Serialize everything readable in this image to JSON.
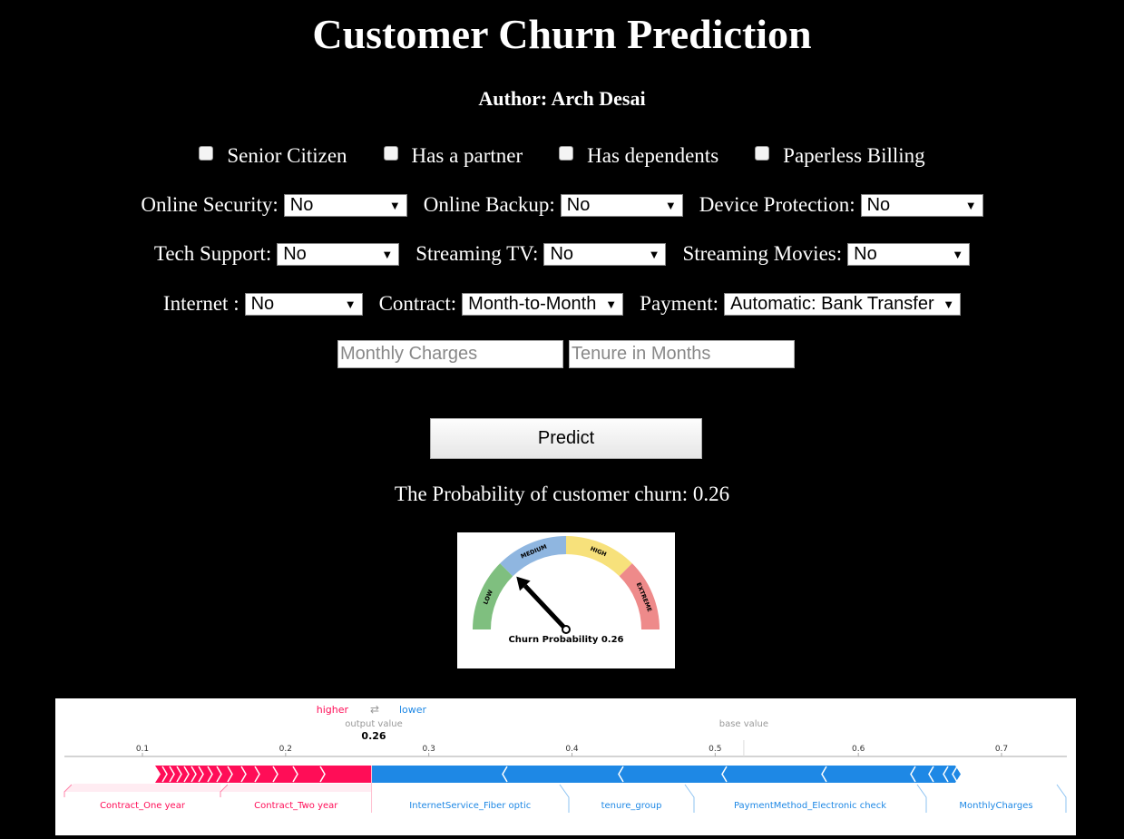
{
  "title": "Customer Churn Prediction",
  "author": "Author: Arch Desai",
  "checkboxes": [
    {
      "label": "Senior Citizen",
      "checked": false
    },
    {
      "label": "Has a partner",
      "checked": false
    },
    {
      "label": "Has dependents",
      "checked": false
    },
    {
      "label": "Paperless Billing",
      "checked": false
    }
  ],
  "selects": {
    "online_security": {
      "label": "Online Security:",
      "value": "No"
    },
    "online_backup": {
      "label": "Online Backup:",
      "value": "No"
    },
    "device_protection": {
      "label": "Device Protection:",
      "value": "No"
    },
    "tech_support": {
      "label": "Tech Support:",
      "value": "No"
    },
    "streaming_tv": {
      "label": "Streaming TV:",
      "value": "No"
    },
    "streaming_movies": {
      "label": "Streaming Movies:",
      "value": "No"
    },
    "internet": {
      "label": "Internet :",
      "value": "No"
    },
    "contract": {
      "label": "Contract:",
      "value": "Month-to-Month"
    },
    "payment": {
      "label": "Payment:",
      "value": "Automatic: Bank Transfer"
    }
  },
  "inputs": {
    "monthly_charges": {
      "placeholder": "Monthly Charges",
      "value": ""
    },
    "tenure": {
      "placeholder": "Tenure in Months",
      "value": ""
    }
  },
  "predict_label": "Predict",
  "result_text": "The Probability of customer churn: 0.26",
  "gauge": {
    "caption": "Churn Probability 0.26",
    "value": 0.26,
    "segments": [
      "LOW",
      "MEDIUM",
      "HIGH",
      "EXTREME"
    ],
    "colors": [
      "#7fbf7f",
      "#8fb6e0",
      "#f7e17b",
      "#ee8a8a"
    ]
  },
  "force_plot": {
    "higher_label": "higher",
    "lower_label": "lower",
    "swap_glyph": "⇄",
    "output_value_label": "output value",
    "output_value": "0.26",
    "base_value_label": "base value",
    "base_value": 0.52,
    "axis_ticks": [
      "0.1",
      "0.2",
      "0.3",
      "0.4",
      "0.5",
      "0.6",
      "0.7"
    ],
    "positive_color": "#ff0d57",
    "negative_color": "#1e88e5",
    "positive_features": [
      "Contract_One year",
      "Contract_Two year"
    ],
    "negative_features": [
      "InternetService_Fiber optic",
      "tenure_group",
      "PaymentMethod_Electronic check",
      "MonthlyCharges"
    ]
  }
}
